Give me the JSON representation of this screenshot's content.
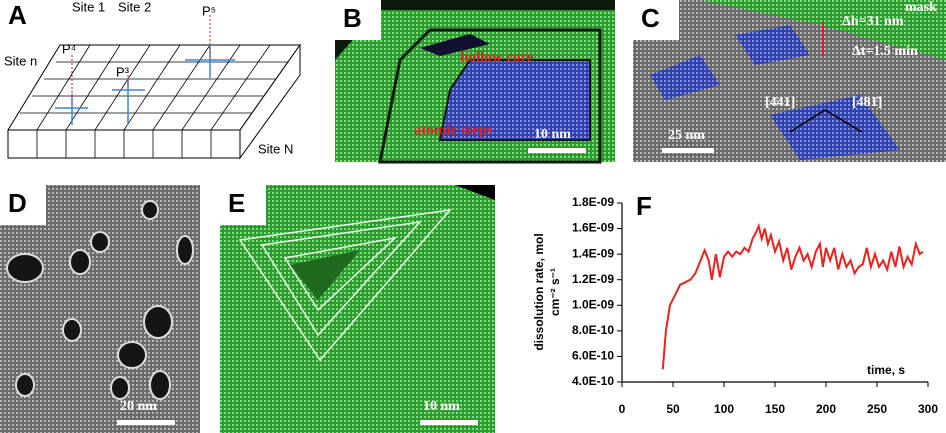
{
  "panels": [
    {
      "label": "A",
      "texts": [
        "Site 1",
        "Site 2",
        "Site n",
        "P⁴",
        "P³",
        "P⁵",
        "Site N"
      ]
    },
    {
      "label": "B",
      "texts": [
        "hollow core",
        "atomic steps",
        "10 nm"
      ]
    },
    {
      "label": "C",
      "texts": [
        "mask",
        "Δh=31 nm",
        "Δt=1.5 min",
        "[4̄41]",
        "[481̄]",
        "25 nm"
      ]
    },
    {
      "label": "D",
      "texts": [
        "20 nm"
      ]
    },
    {
      "label": "E",
      "texts": [
        "10 nm"
      ]
    },
    {
      "label": "F",
      "texts": []
    }
  ],
  "chart_data": {
    "type": "line",
    "ylabel": [
      "dissolution rate, mol",
      "cm⁻² s⁻¹"
    ],
    "xlabel": "time, s",
    "color": "#e8231f",
    "x": [
      40,
      43,
      47,
      52,
      57,
      62,
      67,
      72,
      77,
      81,
      85,
      88,
      92,
      96,
      100,
      104,
      108,
      112,
      116,
      120,
      124,
      128,
      132,
      134,
      137,
      140,
      143,
      146,
      150,
      154,
      158,
      162,
      166,
      170,
      174,
      178,
      182,
      186,
      190,
      194,
      197,
      200,
      204,
      208,
      212,
      216,
      220,
      224,
      228,
      232,
      236,
      240,
      244,
      248,
      252,
      256,
      260,
      264,
      268,
      272,
      276,
      280,
      284,
      288,
      292,
      295
    ],
    "values": [
      5e-10,
      8e-10,
      1e-09,
      1.08e-09,
      1.16e-09,
      1.18e-09,
      1.2e-09,
      1.25e-09,
      1.35e-09,
      1.43e-09,
      1.35e-09,
      1.2e-09,
      1.4e-09,
      1.22e-09,
      1.38e-09,
      1.42e-09,
      1.38e-09,
      1.42e-09,
      1.4e-09,
      1.45e-09,
      1.42e-09,
      1.52e-09,
      1.58e-09,
      1.62e-09,
      1.52e-09,
      1.6e-09,
      1.48e-09,
      1.55e-09,
      1.42e-09,
      1.5e-09,
      1.35e-09,
      1.45e-09,
      1.28e-09,
      1.38e-09,
      1.45e-09,
      1.35e-09,
      1.4e-09,
      1.3e-09,
      1.42e-09,
      1.48e-09,
      1.3e-09,
      1.45e-09,
      1.35e-09,
      1.45e-09,
      1.28e-09,
      1.4e-09,
      1.3e-09,
      1.35e-09,
      1.25e-09,
      1.3e-09,
      1.32e-09,
      1.45e-09,
      1.3e-09,
      1.4e-09,
      1.3e-09,
      1.35e-09,
      1.28e-09,
      1.42e-09,
      1.3e-09,
      1.46e-09,
      1.3e-09,
      1.38e-09,
      1.32e-09,
      1.48e-09,
      1.4e-09,
      1.42e-09
    ],
    "xlim": [
      0,
      300
    ],
    "xticks": [
      0,
      50,
      100,
      150,
      200,
      250,
      300
    ],
    "ylim": [
      4e-10,
      1.8e-09
    ],
    "yticks": [
      {
        "value": 4e-10,
        "label": "4.0E-10"
      },
      {
        "value": 6e-10,
        "label": "6.0E-10"
      },
      {
        "value": 8e-10,
        "label": "8.0E-10"
      },
      {
        "value": 1e-09,
        "label": "1.0E-09"
      },
      {
        "value": 1.2e-09,
        "label": "1.2E-09"
      },
      {
        "value": 1.4e-09,
        "label": "1.4E-09"
      },
      {
        "value": 1.6e-09,
        "label": "1.6E-09"
      },
      {
        "value": 1.8e-09,
        "label": "1.8E-09"
      }
    ]
  }
}
